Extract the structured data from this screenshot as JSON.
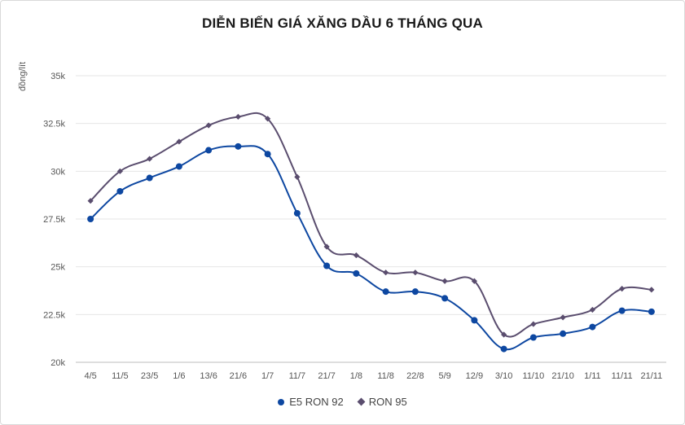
{
  "chart_data": {
    "type": "line",
    "title": "DIỄN BIẾN GIÁ XĂNG DẦU 6 THÁNG QUA",
    "xlabel": "",
    "ylabel": "đồng/lít",
    "ylim": [
      20000,
      35000
    ],
    "yticks": [
      20000,
      22500,
      25000,
      27500,
      30000,
      32500,
      35000
    ],
    "ytick_labels": [
      "20k",
      "22.5k",
      "25k",
      "27.5k",
      "30k",
      "32.5k",
      "35k"
    ],
    "grid": true,
    "legend_position": "bottom",
    "categories": [
      "4/5",
      "11/5",
      "23/5",
      "1/6",
      "13/6",
      "21/6",
      "1/7",
      "11/7",
      "21/7",
      "1/8",
      "11/8",
      "22/8",
      "5/9",
      "12/9",
      "3/10",
      "11/10",
      "21/10",
      "1/11",
      "11/11",
      "21/11"
    ],
    "series": [
      {
        "name": "E5 RON 92",
        "color": "#0d47a1",
        "marker": "circle",
        "values": [
          27500,
          28950,
          29650,
          30250,
          31100,
          31300,
          30900,
          27800,
          25050,
          24650,
          23700,
          23700,
          23350,
          22200,
          20700,
          21300,
          21500,
          21850,
          22700,
          22650
        ]
      },
      {
        "name": "RON 95",
        "color": "#5a4d6e",
        "marker": "diamond",
        "values": [
          28450,
          30000,
          30650,
          31550,
          32400,
          32850,
          32750,
          29700,
          26050,
          25600,
          24700,
          24700,
          24250,
          24250,
          21450,
          22000,
          22350,
          22750,
          23850,
          23800
        ]
      }
    ]
  }
}
